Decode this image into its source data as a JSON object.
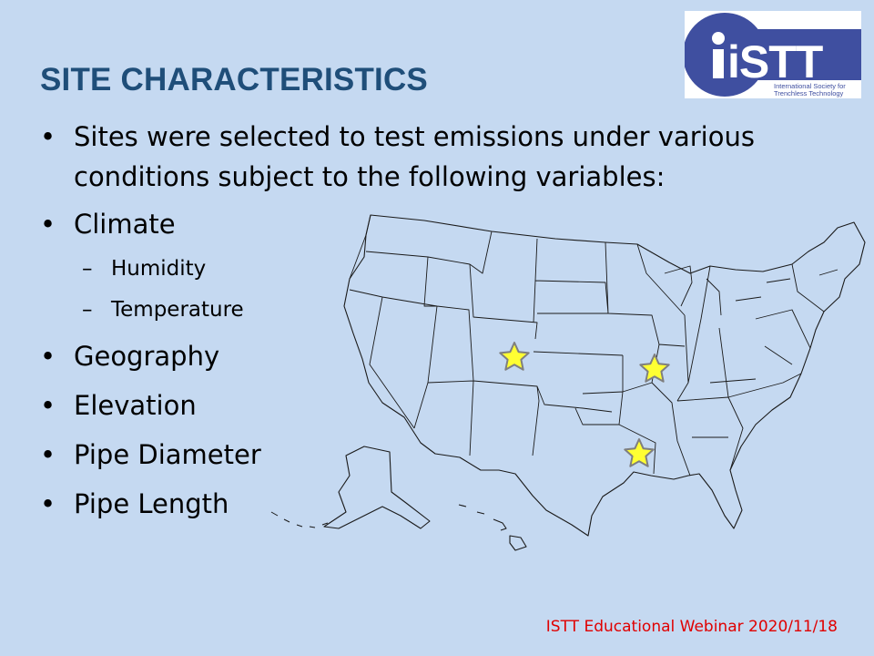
{
  "logo": {
    "mark": "iSTT",
    "tagline_line1": "International Society for",
    "tagline_line2": "Trenchless Technology"
  },
  "title": "SITE CHARACTERISTICS",
  "bullets": [
    {
      "text": "Sites were selected to test emissions under various",
      "continuation": "conditions subject to the following variables:"
    },
    {
      "text": "Climate",
      "sub": [
        "Humidity",
        "Temperature"
      ]
    },
    {
      "text": "Geography"
    },
    {
      "text": "Elevation"
    },
    {
      "text": "Pipe Diameter"
    },
    {
      "text": "Pipe Length"
    }
  ],
  "map": {
    "marker_color": "#ffff33",
    "sites": [
      "Colorado",
      "Illinois/Missouri",
      "Louisiana"
    ]
  },
  "footer": "ISTT Educational Webinar 2020/11/18",
  "colors": {
    "background": "#c5d9f1",
    "title": "#1f4e79",
    "footer": "#e00000",
    "logo_blue": "#3f4fa0"
  }
}
